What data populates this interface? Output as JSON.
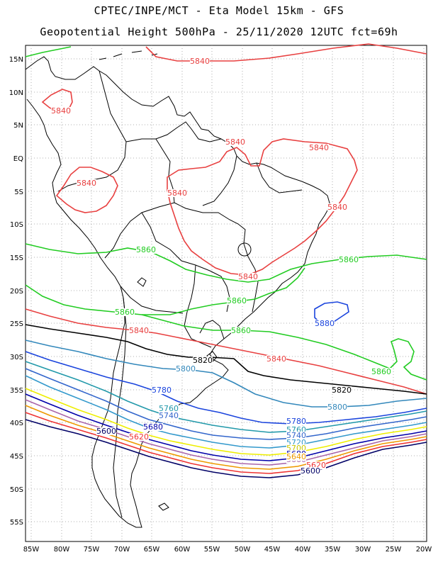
{
  "title_line1": "CPTEC/INPE/MCT -  Eta Model 15km - GFS",
  "title_line2": "Geopotential Height 500hPa - 25/11/2020 12UTC fct=69h",
  "lat_labels": [
    "15N",
    "10N",
    "5N",
    "EQ",
    "5S",
    "10S",
    "15S",
    "20S",
    "25S",
    "30S",
    "35S",
    "40S",
    "45S",
    "50S",
    "55S"
  ],
  "lon_labels": [
    "85W",
    "80W",
    "75W",
    "70W",
    "65W",
    "60W",
    "55W",
    "50W",
    "45W",
    "40W",
    "35W",
    "30W",
    "25W",
    "20W"
  ],
  "contour_colors": {
    "5860": "#22cc22",
    "5840": "#e84040",
    "5820": "#000000",
    "5800": "#3388bb",
    "5780": "#1a44dd",
    "5760": "#2299aa",
    "5740": "#3366cc",
    "5720": "#3399cc",
    "5700": "#eeee00",
    "5680": "#0000aa",
    "5660": "#aa66aa",
    "5640": "#ee9900",
    "5620": "#ee3333",
    "5600": "#000066"
  },
  "contour_labels": [
    {
      "text": "5840",
      "color": "#e84040"
    },
    {
      "text": "5840",
      "color": "#e84040"
    },
    {
      "text": "5840",
      "color": "#e84040"
    },
    {
      "text": "5840",
      "color": "#e84040"
    },
    {
      "text": "5840",
      "color": "#e84040"
    },
    {
      "text": "5840",
      "color": "#e84040"
    },
    {
      "text": "5840",
      "color": "#e84040"
    },
    {
      "text": "5840",
      "color": "#e84040"
    },
    {
      "text": "5840",
      "color": "#e84040"
    },
    {
      "text": "5840",
      "color": "#e84040"
    },
    {
      "text": "5860",
      "color": "#22cc22"
    },
    {
      "text": "5860",
      "color": "#22cc22"
    },
    {
      "text": "5860",
      "color": "#22cc22"
    },
    {
      "text": "5860",
      "color": "#22cc22"
    },
    {
      "text": "5860",
      "color": "#22cc22"
    },
    {
      "text": "5860",
      "color": "#22cc22"
    },
    {
      "text": "5880",
      "color": "#1a44dd"
    },
    {
      "text": "5820",
      "color": "#000000"
    },
    {
      "text": "5820",
      "color": "#000000"
    },
    {
      "text": "5800",
      "color": "#3388bb"
    },
    {
      "text": "5800",
      "color": "#3388bb"
    },
    {
      "text": "5780",
      "color": "#1a44dd"
    },
    {
      "text": "5780",
      "color": "#1a44dd"
    },
    {
      "text": "5760",
      "color": "#2299aa"
    },
    {
      "text": "5760",
      "color": "#2299aa"
    },
    {
      "text": "5740",
      "color": "#3366cc"
    },
    {
      "text": "5740",
      "color": "#3366cc"
    },
    {
      "text": "5720",
      "color": "#3399cc"
    },
    {
      "text": "5700",
      "color": "#c8c800"
    },
    {
      "text": "5680",
      "color": "#0000aa"
    },
    {
      "text": "5680",
      "color": "#0000aa"
    },
    {
      "text": "5660",
      "color": "#aa66aa"
    },
    {
      "text": "5640",
      "color": "#ee9900"
    },
    {
      "text": "5620",
      "color": "#ee3333"
    },
    {
      "text": "5620",
      "color": "#ee3333"
    },
    {
      "text": "5600",
      "color": "#000066"
    },
    {
      "text": "5600",
      "color": "#000066"
    }
  ]
}
